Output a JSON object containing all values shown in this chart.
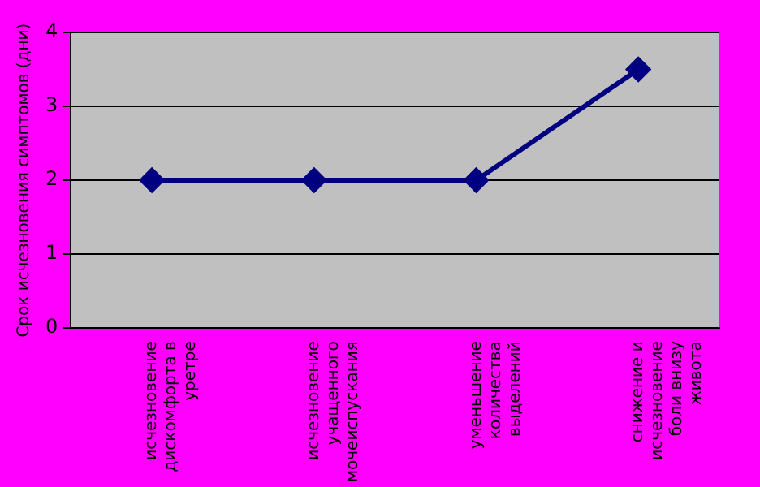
{
  "chart_data": {
    "type": "line",
    "ylabel": "Срок исчезновения симптомов (дни)",
    "categories": [
      "исчезновение дискомфорта в уретре",
      "исчезновение учащенного мочеиспускания",
      "уменьшение количества выделений",
      "снижение и исчезновение боли внизу живота"
    ],
    "series": [
      {
        "color": "#000080",
        "values": [
          2,
          2,
          2,
          3.5
        ]
      }
    ],
    "ylim": [
      0,
      4
    ],
    "yticks": [
      0,
      1,
      2,
      3,
      4
    ],
    "grid": "y",
    "legend": false,
    "marker": "diamond",
    "line_style": "solid"
  }
}
